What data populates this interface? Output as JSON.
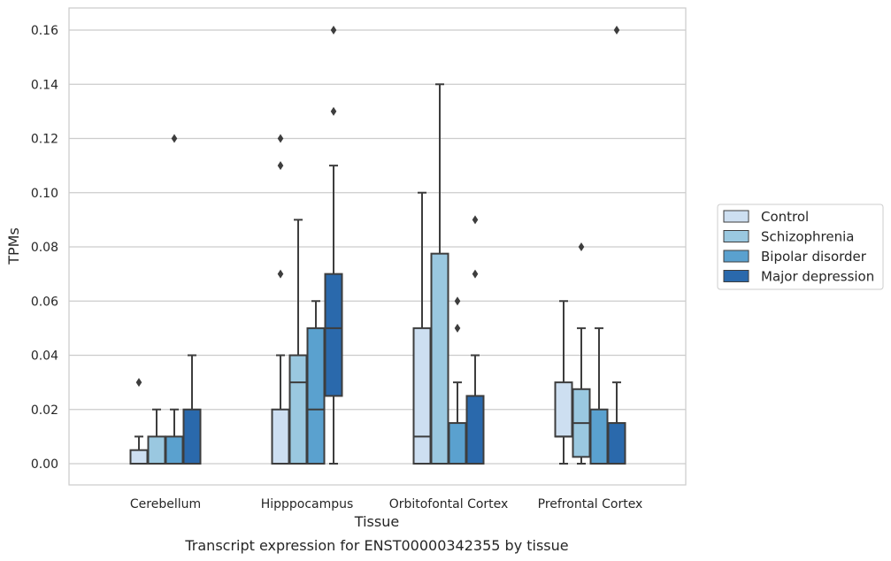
{
  "caption": "Transcript expression for ENST00000342355 by tissue",
  "chart_data": {
    "type": "box",
    "xlabel": "Tissue",
    "ylabel": "TPMs",
    "ylim": [
      -0.008,
      0.168
    ],
    "yticks": [
      "0.00",
      "0.02",
      "0.04",
      "0.06",
      "0.08",
      "0.10",
      "0.12",
      "0.14",
      "0.16"
    ],
    "categories": [
      "Cerebellum",
      "Hipppocampus",
      "Orbitofontal Cortex",
      "Prefrontal Cortex"
    ],
    "grid": "horizontal",
    "legend_position": "right",
    "colors": [
      "#cddff1",
      "#9ac8e0",
      "#5aa1cf",
      "#2a69ac"
    ],
    "series": [
      {
        "name": "Control",
        "boxes": [
          {
            "whislo": 0.0,
            "q1": 0.0,
            "med": 0.0,
            "q3": 0.005,
            "whishi": 0.01,
            "fliers": [
              0.03
            ]
          },
          {
            "whislo": 0.0,
            "q1": 0.0,
            "med": 0.0,
            "q3": 0.02,
            "whishi": 0.04,
            "fliers": [
              0.07,
              0.11,
              0.12
            ]
          },
          {
            "whislo": 0.0,
            "q1": 0.0,
            "med": 0.01,
            "q3": 0.05,
            "whishi": 0.1,
            "fliers": []
          },
          {
            "whislo": 0.0,
            "q1": 0.01,
            "med": 0.01,
            "q3": 0.03,
            "whishi": 0.06,
            "fliers": []
          }
        ]
      },
      {
        "name": "Schizophrenia",
        "boxes": [
          {
            "whislo": 0.0,
            "q1": 0.0,
            "med": 0.0,
            "q3": 0.01,
            "whishi": 0.02,
            "fliers": []
          },
          {
            "whislo": 0.0,
            "q1": 0.0,
            "med": 0.03,
            "q3": 0.04,
            "whishi": 0.09,
            "fliers": []
          },
          {
            "whislo": 0.0,
            "q1": 0.0,
            "med": 0.0,
            "q3": 0.0775,
            "whishi": 0.14,
            "fliers": []
          },
          {
            "whislo": 0.0,
            "q1": 0.0025,
            "med": 0.015,
            "q3": 0.0275,
            "whishi": 0.05,
            "fliers": [
              0.08
            ]
          }
        ]
      },
      {
        "name": "Bipolar disorder",
        "boxes": [
          {
            "whislo": 0.0,
            "q1": 0.0,
            "med": 0.0,
            "q3": 0.01,
            "whishi": 0.02,
            "fliers": [
              0.12
            ]
          },
          {
            "whislo": 0.0,
            "q1": 0.0,
            "med": 0.02,
            "q3": 0.05,
            "whishi": 0.06,
            "fliers": []
          },
          {
            "whislo": 0.0,
            "q1": 0.0,
            "med": 0.0,
            "q3": 0.015,
            "whishi": 0.03,
            "fliers": [
              0.05,
              0.06
            ]
          },
          {
            "whislo": 0.0,
            "q1": 0.0,
            "med": 0.0,
            "q3": 0.02,
            "whishi": 0.05,
            "fliers": []
          }
        ]
      },
      {
        "name": "Major depression",
        "boxes": [
          {
            "whislo": 0.0,
            "q1": 0.0,
            "med": 0.0,
            "q3": 0.02,
            "whishi": 0.04,
            "fliers": []
          },
          {
            "whislo": 0.0,
            "q1": 0.025,
            "med": 0.05,
            "q3": 0.07,
            "whishi": 0.11,
            "fliers": [
              0.13,
              0.16
            ]
          },
          {
            "whislo": 0.0,
            "q1": 0.0,
            "med": 0.0,
            "q3": 0.025,
            "whishi": 0.04,
            "fliers": [
              0.07,
              0.09
            ]
          },
          {
            "whislo": 0.0,
            "q1": 0.0,
            "med": 0.0,
            "q3": 0.015,
            "whishi": 0.03,
            "fliers": [
              0.16
            ]
          }
        ]
      }
    ]
  }
}
